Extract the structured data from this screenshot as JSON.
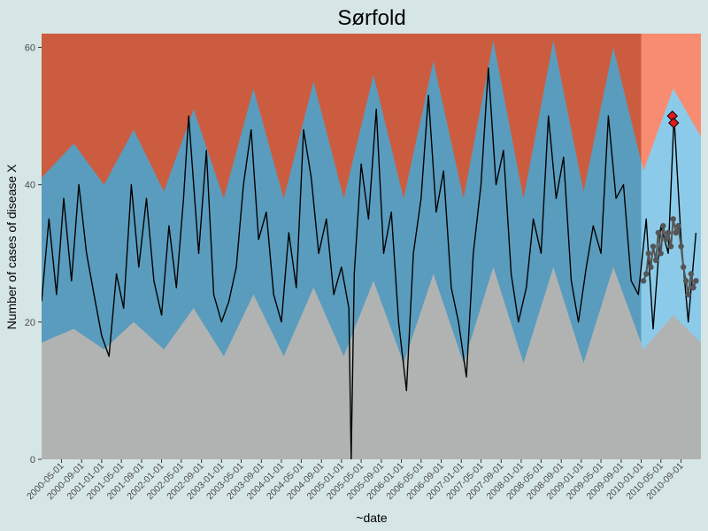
{
  "chart_data": {
    "type": "area",
    "title": "Sørfold",
    "xlabel": "~date",
    "ylabel": "Number of cases of disease X",
    "ylim": [
      0,
      62
    ],
    "y_ticks": [
      0,
      20,
      40,
      60
    ],
    "x_range": [
      "2000-01-01",
      "2010-12-31"
    ],
    "x_ticks": [
      "2000-05-01",
      "2000-09-01",
      "2001-01-01",
      "2001-05-01",
      "2001-09-01",
      "2002-01-01",
      "2002-05-01",
      "2002-09-01",
      "2003-01-01",
      "2003-05-01",
      "2003-09-01",
      "2004-01-01",
      "2004-05-01",
      "2004-09-01",
      "2005-01-01",
      "2005-05-01",
      "2005-09-01",
      "2006-01-01",
      "2006-05-01",
      "2006-09-01",
      "2007-01-01",
      "2007-05-01",
      "2007-09-01",
      "2008-01-01",
      "2008-05-01",
      "2008-09-01",
      "2009-01-01",
      "2009-05-01",
      "2009-09-01",
      "2010-01-01",
      "2010-05-01",
      "2010-09-01"
    ],
    "shaded_region_start": "2010-01-01",
    "colors": {
      "background": "#d6e6e6",
      "upper_band": "#cc5c40",
      "upper_band_forecast": "#f88c70",
      "normal_band": "#5a9cbd",
      "normal_band_forecast": "#8bcbe9",
      "lower_band": "#b1b3b3",
      "observed_line": "#000000",
      "forecast_points": "#555555",
      "alert_points": "#e31a1c"
    },
    "bands": {
      "lower_threshold": [
        {
          "date": "2000-01-01",
          "value": 17
        },
        {
          "date": "2000-07-15",
          "value": 19
        },
        {
          "date": "2001-01-15",
          "value": 16
        },
        {
          "date": "2001-07-15",
          "value": 20
        },
        {
          "date": "2002-01-15",
          "value": 16
        },
        {
          "date": "2002-07-15",
          "value": 22
        },
        {
          "date": "2003-01-15",
          "value": 15
        },
        {
          "date": "2003-07-15",
          "value": 24
        },
        {
          "date": "2004-01-15",
          "value": 15
        },
        {
          "date": "2004-07-15",
          "value": 25
        },
        {
          "date": "2005-01-15",
          "value": 15
        },
        {
          "date": "2005-07-15",
          "value": 26
        },
        {
          "date": "2006-01-15",
          "value": 14
        },
        {
          "date": "2006-07-15",
          "value": 27
        },
        {
          "date": "2007-01-15",
          "value": 14
        },
        {
          "date": "2007-07-15",
          "value": 28
        },
        {
          "date": "2008-01-15",
          "value": 14
        },
        {
          "date": "2008-07-15",
          "value": 28
        },
        {
          "date": "2009-01-15",
          "value": 14
        },
        {
          "date": "2009-07-15",
          "value": 28
        },
        {
          "date": "2010-01-15",
          "value": 16
        },
        {
          "date": "2010-07-15",
          "value": 21
        },
        {
          "date": "2010-12-31",
          "value": 17
        }
      ],
      "upper_threshold": [
        {
          "date": "2000-01-01",
          "value": 41
        },
        {
          "date": "2000-07-15",
          "value": 46
        },
        {
          "date": "2001-01-15",
          "value": 40
        },
        {
          "date": "2001-07-15",
          "value": 48
        },
        {
          "date": "2002-01-15",
          "value": 39
        },
        {
          "date": "2002-07-15",
          "value": 51
        },
        {
          "date": "2003-01-15",
          "value": 38
        },
        {
          "date": "2003-07-15",
          "value": 54
        },
        {
          "date": "2004-01-15",
          "value": 38
        },
        {
          "date": "2004-07-15",
          "value": 55
        },
        {
          "date": "2005-01-15",
          "value": 38
        },
        {
          "date": "2005-07-15",
          "value": 56
        },
        {
          "date": "2006-01-15",
          "value": 38
        },
        {
          "date": "2006-07-15",
          "value": 58
        },
        {
          "date": "2007-01-15",
          "value": 38
        },
        {
          "date": "2007-07-15",
          "value": 61
        },
        {
          "date": "2008-01-15",
          "value": 38
        },
        {
          "date": "2008-07-15",
          "value": 61
        },
        {
          "date": "2009-01-15",
          "value": 39
        },
        {
          "date": "2009-07-15",
          "value": 60
        },
        {
          "date": "2010-01-15",
          "value": 42
        },
        {
          "date": "2010-07-15",
          "value": 54
        },
        {
          "date": "2010-12-31",
          "value": 47
        }
      ]
    },
    "series": [
      {
        "type": "line",
        "values": [
          {
            "date": "2000-01-01",
            "value": 23
          },
          {
            "date": "2000-02-15",
            "value": 35
          },
          {
            "date": "2000-04-01",
            "value": 24
          },
          {
            "date": "2000-05-15",
            "value": 38
          },
          {
            "date": "2000-07-01",
            "value": 26
          },
          {
            "date": "2000-08-15",
            "value": 40
          },
          {
            "date": "2000-10-01",
            "value": 30
          },
          {
            "date": "2000-11-15",
            "value": 24
          },
          {
            "date": "2001-01-01",
            "value": 18
          },
          {
            "date": "2001-02-15",
            "value": 15
          },
          {
            "date": "2001-04-01",
            "value": 27
          },
          {
            "date": "2001-05-15",
            "value": 22
          },
          {
            "date": "2001-07-01",
            "value": 40
          },
          {
            "date": "2001-08-15",
            "value": 28
          },
          {
            "date": "2001-10-01",
            "value": 38
          },
          {
            "date": "2001-11-15",
            "value": 26
          },
          {
            "date": "2002-01-01",
            "value": 21
          },
          {
            "date": "2002-02-15",
            "value": 34
          },
          {
            "date": "2002-04-01",
            "value": 25
          },
          {
            "date": "2002-05-15",
            "value": 38
          },
          {
            "date": "2002-06-15",
            "value": 50
          },
          {
            "date": "2002-08-15",
            "value": 30
          },
          {
            "date": "2002-10-01",
            "value": 45
          },
          {
            "date": "2002-11-15",
            "value": 24
          },
          {
            "date": "2003-01-01",
            "value": 20
          },
          {
            "date": "2003-02-15",
            "value": 23
          },
          {
            "date": "2003-04-01",
            "value": 28
          },
          {
            "date": "2003-05-15",
            "value": 40
          },
          {
            "date": "2003-07-01",
            "value": 48
          },
          {
            "date": "2003-08-15",
            "value": 32
          },
          {
            "date": "2003-10-01",
            "value": 36
          },
          {
            "date": "2003-11-15",
            "value": 24
          },
          {
            "date": "2004-01-01",
            "value": 20
          },
          {
            "date": "2004-02-15",
            "value": 33
          },
          {
            "date": "2004-04-01",
            "value": 25
          },
          {
            "date": "2004-05-15",
            "value": 48
          },
          {
            "date": "2004-07-01",
            "value": 41
          },
          {
            "date": "2004-08-15",
            "value": 30
          },
          {
            "date": "2004-10-01",
            "value": 35
          },
          {
            "date": "2004-11-15",
            "value": 24
          },
          {
            "date": "2005-01-01",
            "value": 28
          },
          {
            "date": "2005-02-15",
            "value": 22
          },
          {
            "date": "2005-03-01",
            "value": 0
          },
          {
            "date": "2005-03-20",
            "value": 27
          },
          {
            "date": "2005-05-01",
            "value": 43
          },
          {
            "date": "2005-06-15",
            "value": 35
          },
          {
            "date": "2005-08-01",
            "value": 51
          },
          {
            "date": "2005-09-15",
            "value": 30
          },
          {
            "date": "2005-11-01",
            "value": 36
          },
          {
            "date": "2005-12-15",
            "value": 20
          },
          {
            "date": "2006-02-01",
            "value": 10
          },
          {
            "date": "2006-03-15",
            "value": 30
          },
          {
            "date": "2006-05-01",
            "value": 38
          },
          {
            "date": "2006-06-15",
            "value": 53
          },
          {
            "date": "2006-08-01",
            "value": 36
          },
          {
            "date": "2006-09-15",
            "value": 42
          },
          {
            "date": "2006-11-01",
            "value": 25
          },
          {
            "date": "2006-12-15",
            "value": 20
          },
          {
            "date": "2007-02-01",
            "value": 12
          },
          {
            "date": "2007-03-15",
            "value": 30
          },
          {
            "date": "2007-05-01",
            "value": 40
          },
          {
            "date": "2007-06-15",
            "value": 57
          },
          {
            "date": "2007-08-01",
            "value": 40
          },
          {
            "date": "2007-09-15",
            "value": 45
          },
          {
            "date": "2007-11-01",
            "value": 27
          },
          {
            "date": "2007-12-15",
            "value": 20
          },
          {
            "date": "2008-02-01",
            "value": 25
          },
          {
            "date": "2008-03-15",
            "value": 35
          },
          {
            "date": "2008-05-01",
            "value": 30
          },
          {
            "date": "2008-06-15",
            "value": 50
          },
          {
            "date": "2008-08-01",
            "value": 38
          },
          {
            "date": "2008-09-15",
            "value": 44
          },
          {
            "date": "2008-11-01",
            "value": 26
          },
          {
            "date": "2008-12-15",
            "value": 20
          },
          {
            "date": "2009-02-01",
            "value": 28
          },
          {
            "date": "2009-03-15",
            "value": 34
          },
          {
            "date": "2009-05-01",
            "value": 30
          },
          {
            "date": "2009-06-15",
            "value": 50
          },
          {
            "date": "2009-08-01",
            "value": 38
          },
          {
            "date": "2009-09-15",
            "value": 40
          },
          {
            "date": "2009-11-01",
            "value": 26
          },
          {
            "date": "2009-12-15",
            "value": 24
          },
          {
            "date": "2010-02-01",
            "value": 35
          },
          {
            "date": "2010-03-15",
            "value": 19
          },
          {
            "date": "2010-05-01",
            "value": 34
          },
          {
            "date": "2010-06-15",
            "value": 30
          },
          {
            "date": "2010-07-20",
            "value": 50
          },
          {
            "date": "2010-09-01",
            "value": 32
          },
          {
            "date": "2010-10-15",
            "value": 20
          },
          {
            "date": "2010-12-01",
            "value": 33
          }
        ]
      },
      {
        "type": "scatter",
        "values": [
          {
            "date": "2010-01-15",
            "value": 26
          },
          {
            "date": "2010-02-01",
            "value": 27
          },
          {
            "date": "2010-02-15",
            "value": 30
          },
          {
            "date": "2010-03-01",
            "value": 28
          },
          {
            "date": "2010-03-15",
            "value": 31
          },
          {
            "date": "2010-04-01",
            "value": 29
          },
          {
            "date": "2010-04-15",
            "value": 33
          },
          {
            "date": "2010-05-01",
            "value": 30
          },
          {
            "date": "2010-05-15",
            "value": 34
          },
          {
            "date": "2010-06-01",
            "value": 32
          },
          {
            "date": "2010-06-15",
            "value": 33
          },
          {
            "date": "2010-07-01",
            "value": 31
          },
          {
            "date": "2010-07-15",
            "value": 35
          },
          {
            "date": "2010-08-01",
            "value": 33
          },
          {
            "date": "2010-08-15",
            "value": 34
          },
          {
            "date": "2010-09-01",
            "value": 31
          },
          {
            "date": "2010-09-15",
            "value": 28
          },
          {
            "date": "2010-10-01",
            "value": 26
          },
          {
            "date": "2010-10-15",
            "value": 24
          },
          {
            "date": "2010-11-01",
            "value": 27
          },
          {
            "date": "2010-11-15",
            "value": 25
          },
          {
            "date": "2010-12-01",
            "value": 26
          }
        ]
      },
      {
        "type": "alert",
        "values": [
          {
            "date": "2010-07-10",
            "value": 50
          },
          {
            "date": "2010-07-18",
            "value": 49
          }
        ]
      }
    ]
  }
}
